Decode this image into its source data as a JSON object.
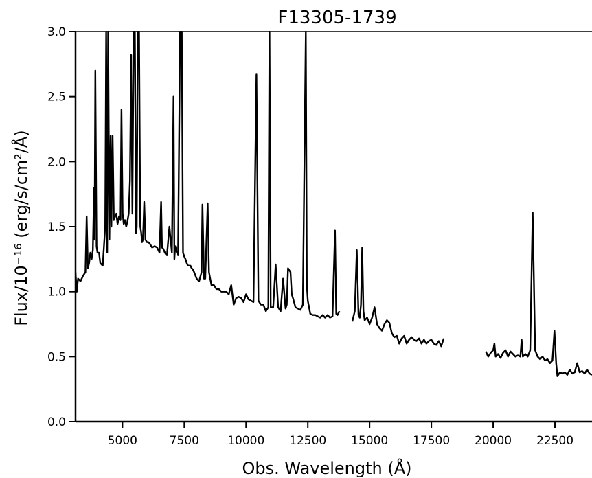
{
  "chart_data": {
    "type": "line",
    "title": "F13305-1739",
    "xlabel": "Obs. Wavelength (Å)",
    "ylabel": "Flux/10⁻¹⁶ (erg/s/cm²/Å)",
    "xlim": [
      3100,
      24000
    ],
    "ylim": [
      0.0,
      3.0
    ],
    "grid": false,
    "x_ticks": [
      5000,
      7500,
      10000,
      12500,
      15000,
      17500,
      20000,
      22500
    ],
    "x_tick_labels": [
      "5000",
      "7500",
      "10000",
      "12500",
      "15000",
      "17500",
      "20000",
      "22500"
    ],
    "y_ticks": [
      0.0,
      0.5,
      1.0,
      1.5,
      2.0,
      2.5,
      3.0
    ],
    "y_tick_labels": [
      "0.0",
      "0.5",
      "1.0",
      "1.5",
      "2.0",
      "2.5",
      "3.0"
    ],
    "series": [
      {
        "color": "#000000",
        "segments": [
          {
            "x": [
              3100,
              3150,
              3200,
              3300,
              3400,
              3500,
              3550,
              3600,
              3650,
              3700,
              3750,
              3800,
              3850,
              3870,
              3900,
              3950,
              3990,
              4050,
              4100,
              4200,
              4300,
              4340,
              4380,
              4420,
              4470,
              4520,
              4550,
              4600,
              4650,
              4700,
              4750,
              4800,
              4861,
              4920,
              4959,
              5007,
              5050,
              5100,
              5150,
              5200,
              5250,
              5300,
              5350,
              5400,
              5450,
              5500,
              5550,
              5577,
              5620,
              5670,
              5720,
              5760,
              5790,
              5830,
              5880,
              5930,
              5990,
              6050,
              6100,
              6200,
              6300,
              6400,
              6500,
              6563,
              6600,
              6650,
              6717,
              6750,
              6800,
              6900,
              7000,
              7065,
              7100,
              7135,
              7200,
              7250,
              7330,
              7400,
              7450,
              7500,
              7550,
              7600,
              7650,
              7700,
              7750,
              7800,
              7850,
              7900,
              8000,
              8100,
              8200,
              8237,
              8300,
              8350,
              8447,
              8500,
              8600,
              8700,
              8800,
              8900,
              9000,
              9100,
              9200,
              9300,
              9400,
              9500,
              9600,
              9700,
              9800,
              9900,
              10000,
              10100,
              10200,
              10300,
              10420,
              10500,
              10600,
              10700,
              10800,
              10900,
              10950,
              11000,
              11100,
              11200,
              11300,
              11400,
              11500,
              11600,
              11650,
              11700,
              11800,
              11850,
              11900,
              12000,
              12100,
              12200,
              12300,
              12420,
              12460,
              12500,
              12600,
              12700,
              12800,
              12900,
              13000,
              13100,
              13200,
              13300,
              13400,
              13500,
              13600,
              13650,
              13700,
              13780
            ],
            "y": [
              1.15,
              1.0,
              1.1,
              1.08,
              1.12,
              1.15,
              1.58,
              1.18,
              1.22,
              1.3,
              1.25,
              1.32,
              1.8,
              1.4,
              2.7,
              1.35,
              1.3,
              1.3,
              1.22,
              1.2,
              1.5,
              3.0,
              1.3,
              3.0,
              1.4,
              2.2,
              1.5,
              2.2,
              1.55,
              1.58,
              1.6,
              1.52,
              1.58,
              1.55,
              2.4,
              1.6,
              1.52,
              1.55,
              1.5,
              1.54,
              1.6,
              1.85,
              2.82,
              1.6,
              3.0,
              3.0,
              1.45,
              1.5,
              3.0,
              3.0,
              1.5,
              1.45,
              1.38,
              1.4,
              1.69,
              1.4,
              1.38,
              1.38,
              1.37,
              1.34,
              1.35,
              1.34,
              1.3,
              1.69,
              1.34,
              1.33,
              1.3,
              1.29,
              1.28,
              1.5,
              1.3,
              2.5,
              1.25,
              1.35,
              1.3,
              1.28,
              3.0,
              3.0,
              1.3,
              1.27,
              1.25,
              1.22,
              1.2,
              1.2,
              1.2,
              1.18,
              1.17,
              1.15,
              1.1,
              1.08,
              1.15,
              1.67,
              1.1,
              1.1,
              1.68,
              1.15,
              1.05,
              1.05,
              1.02,
              1.02,
              1.0,
              1.0,
              1.0,
              0.98,
              1.05,
              0.9,
              0.95,
              0.96,
              0.95,
              0.92,
              0.98,
              0.94,
              0.93,
              0.92,
              2.67,
              0.93,
              0.9,
              0.9,
              0.85,
              0.88,
              3.0,
              0.88,
              0.88,
              1.21,
              0.88,
              0.85,
              1.1,
              0.87,
              0.9,
              1.18,
              1.15,
              0.98,
              0.95,
              0.88,
              0.87,
              0.86,
              0.9,
              3.0,
              1.05,
              0.93,
              0.83,
              0.82,
              0.82,
              0.81,
              0.8,
              0.82,
              0.8,
              0.82,
              0.8,
              0.81,
              1.47,
              0.83,
              0.82,
              0.85
            ]
          },
          {
            "x": [
              14300,
              14400,
              14480,
              14550,
              14600,
              14650,
              14700,
              14750,
              14800,
              14900,
              15000,
              15100,
              15200,
              15300,
              15400,
              15500,
              15600,
              15700,
              15800,
              15900,
              16000,
              16100,
              16200,
              16300,
              16400,
              16500,
              16600,
              16700,
              16800,
              16900,
              17000,
              17100,
              17200,
              17300,
              17400,
              17500,
              17600,
              17700,
              17800,
              17900,
              18000
            ],
            "y": [
              0.77,
              0.85,
              1.32,
              0.82,
              0.8,
              0.9,
              1.34,
              0.85,
              0.78,
              0.8,
              0.75,
              0.8,
              0.88,
              0.75,
              0.72,
              0.7,
              0.75,
              0.78,
              0.76,
              0.68,
              0.65,
              0.66,
              0.6,
              0.64,
              0.66,
              0.6,
              0.63,
              0.65,
              0.63,
              0.62,
              0.64,
              0.6,
              0.63,
              0.6,
              0.62,
              0.63,
              0.6,
              0.59,
              0.62,
              0.58,
              0.64
            ]
          },
          {
            "x": [
              19700,
              19800,
              19900,
              20000,
              20050,
              20100,
              20200,
              20300,
              20400,
              20500,
              20600,
              20700,
              20800,
              20900,
              21000,
              21100,
              21150,
              21200,
              21300,
              21400,
              21500,
              21600,
              21700,
              21800,
              21900,
              22000,
              22100,
              22200,
              22300,
              22400,
              22480,
              22550,
              22600,
              22700,
              22800,
              22900,
              23000,
              23100,
              23200,
              23300,
              23400,
              23500,
              23600,
              23700,
              23800,
              23900,
              24000
            ],
            "y": [
              0.54,
              0.5,
              0.53,
              0.55,
              0.6,
              0.5,
              0.52,
              0.49,
              0.53,
              0.55,
              0.5,
              0.54,
              0.52,
              0.5,
              0.51,
              0.5,
              0.63,
              0.5,
              0.52,
              0.5,
              0.55,
              1.61,
              0.55,
              0.5,
              0.48,
              0.5,
              0.47,
              0.48,
              0.45,
              0.47,
              0.7,
              0.45,
              0.35,
              0.38,
              0.37,
              0.38,
              0.36,
              0.4,
              0.37,
              0.38,
              0.45,
              0.38,
              0.39,
              0.37,
              0.4,
              0.37,
              0.36
            ]
          }
        ]
      }
    ]
  }
}
